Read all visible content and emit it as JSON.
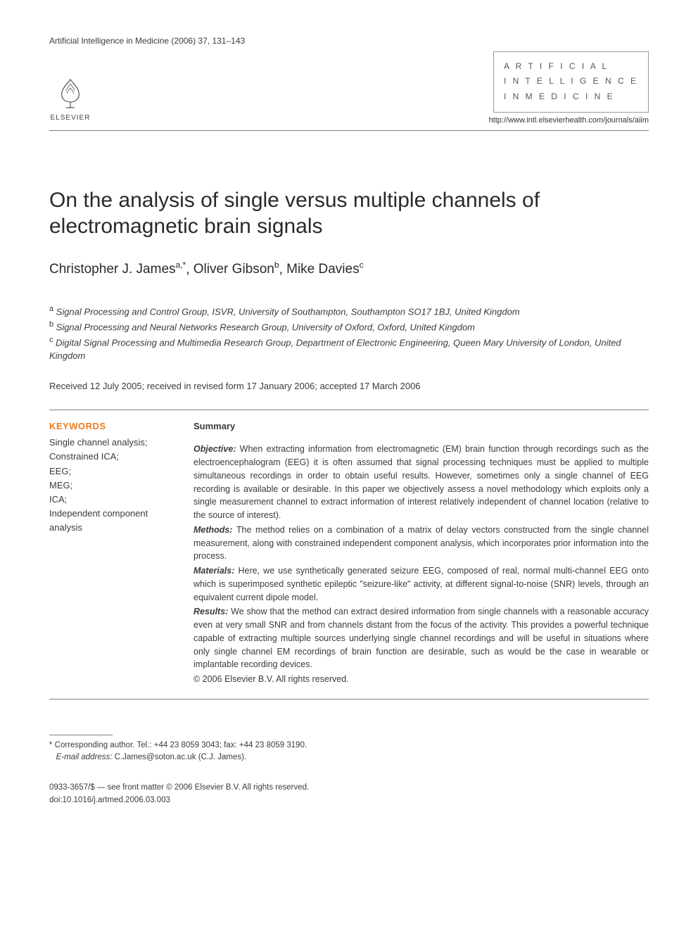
{
  "header": {
    "journal_ref": "Artificial Intelligence in Medicine (2006) 37, 131–143",
    "publisher_name": "ELSEVIER",
    "journal_box_line1": "A R T I F I C I A L",
    "journal_box_line2": "I N T E L L I G E N C E",
    "journal_box_line3": "I N  M E D I C I N E",
    "journal_url": "http://www.intl.elsevierhealth.com/journals/aiim"
  },
  "title": "On the analysis of single versus multiple channels of electromagnetic brain signals",
  "authors": [
    {
      "name": "Christopher J. James",
      "markers": "a,*"
    },
    {
      "name": "Oliver Gibson",
      "markers": "b"
    },
    {
      "name": "Mike Davies",
      "markers": "c"
    }
  ],
  "affiliations": [
    {
      "marker": "a",
      "text": "Signal Processing and Control Group, ISVR, University of Southampton, Southampton SO17 1BJ, United Kingdom"
    },
    {
      "marker": "b",
      "text": "Signal Processing and Neural Networks Research Group, University of Oxford, Oxford, United Kingdom"
    },
    {
      "marker": "c",
      "text": "Digital Signal Processing and Multimedia Research Group, Department of Electronic Engineering, Queen Mary University of London, United Kingdom"
    }
  ],
  "dates": "Received 12 July 2005; received in revised form 17 January 2006; accepted 17 March 2006",
  "keywords": {
    "heading": "KEYWORDS",
    "items": [
      "Single channel analysis;",
      "Constrained ICA;",
      "EEG;",
      "MEG;",
      "ICA;",
      "Independent component analysis"
    ]
  },
  "summary": {
    "heading": "Summary",
    "sections": [
      {
        "label": "Objective:",
        "body": "When extracting information from electromagnetic (EM) brain function through recordings such as the electroencephalogram (EEG) it is often assumed that signal processing techniques must be applied to multiple simultaneous recordings in order to obtain useful results. However, sometimes only a single channel of EEG recording is available or desirable. In this paper we objectively assess a novel methodology which exploits only a single measurement channel to extract information of interest relatively independent of channel location (relative to the source of interest)."
      },
      {
        "label": "Methods:",
        "body": "The method relies on a combination of a matrix of delay vectors constructed from the single channel measurement, along with constrained independent component analysis, which incorporates prior information into the process."
      },
      {
        "label": "Materials:",
        "body": "Here, we use synthetically generated seizure EEG, composed of real, normal multi-channel EEG onto which is superimposed synthetic epileptic \"seizure-like\" activity, at different signal-to-noise (SNR) levels, through an equivalent current dipole model."
      },
      {
        "label": "Results:",
        "body": "We show that the method can extract desired information from single channels with a reasonable accuracy even at very small SNR and from channels distant from the focus of the activity. This provides a powerful technique capable of extracting multiple sources underlying single channel recordings and will be useful in situations where only single channel EM recordings of brain function are desirable, such as would be the case in wearable or implantable recording devices."
      }
    ],
    "copyright": "© 2006 Elsevier B.V. All rights reserved."
  },
  "footnote": {
    "corr_prefix": "* Corresponding author. Tel.: +44 23 8059 3043; fax: +44 23 8059 3190.",
    "email_label": "E-mail address:",
    "email": "C.James@soton.ac.uk",
    "email_suffix": "(C.J. James)."
  },
  "footer": {
    "line1": "0933-3657/$ — see front matter © 2006 Elsevier B.V. All rights reserved.",
    "line2": "doi:10.1016/j.artmed.2006.03.003"
  },
  "colors": {
    "text": "#3a3a3a",
    "heading_accent": "#ec7c1c",
    "rule": "#808080",
    "background": "#ffffff"
  },
  "typography": {
    "body_family": "Arial, Helvetica, sans-serif",
    "title_size_pt": 22,
    "author_size_pt": 14,
    "body_size_pt": 10,
    "keywords_accent_weight": "bold"
  }
}
